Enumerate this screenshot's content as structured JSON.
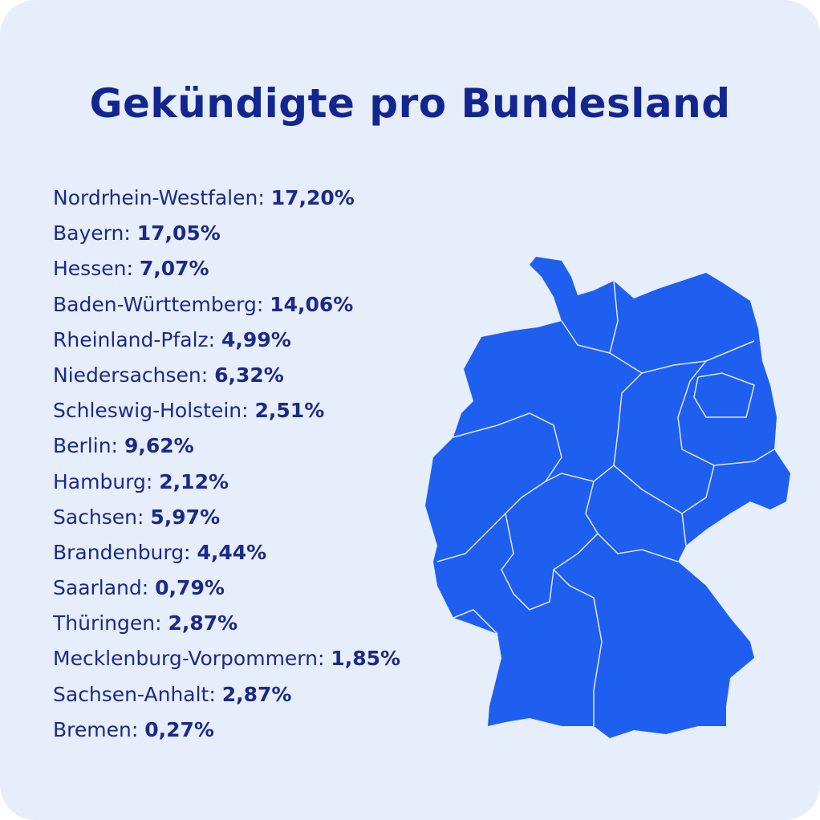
{
  "header": {
    "title": "Gekündigte pro Bundesland"
  },
  "items": [
    {
      "name": "Nordrhein-Westfalen:",
      "value": "17,20%"
    },
    {
      "name": "Bayern:",
      "value": "17,05%"
    },
    {
      "name": "Hessen:",
      "value": "7,07%"
    },
    {
      "name": "Baden-Württemberg:",
      "value": "14,06%"
    },
    {
      "name": "Rheinland-Pfalz:",
      "value": "4,99%"
    },
    {
      "name": "Niedersachsen:",
      "value": "6,32%"
    },
    {
      "name": "Schleswig-Holstein:",
      "value": "2,51%"
    },
    {
      "name": "Berlin:",
      "value": "9,62%"
    },
    {
      "name": "Hamburg:",
      "value": "2,12%"
    },
    {
      "name": "Sachsen:",
      "value": "5,97%"
    },
    {
      "name": "Brandenburg:",
      "value": "4,44%"
    },
    {
      "name": "Saarland:",
      "value": "0,79%"
    },
    {
      "name": "Thüringen:",
      "value": "2,87%"
    },
    {
      "name": "Mecklenburg-Vorpommern:",
      "value": "1,85%"
    },
    {
      "name": "Sachsen-Anhalt:",
      "value": "2,87%"
    },
    {
      "name": "Bremen:",
      "value": "0,27%"
    }
  ]
}
